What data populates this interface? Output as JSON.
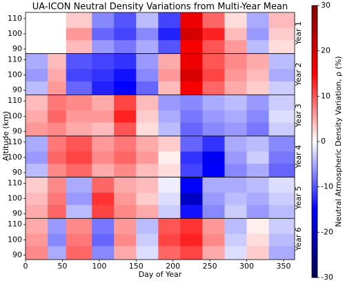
{
  "chart_data": {
    "type": "heatmap",
    "title": "UA-ICON Neutral Density Variations from Multi-Year Mean",
    "xlabel": "Day of Year",
    "ylabel": "Altitude (km)",
    "colorbar_label": "Neutral Atmospheric Density Variation, ρ (%)",
    "colormap": "seismic",
    "x_edges": [
      0,
      30,
      55,
      90,
      120,
      150,
      180,
      210,
      240,
      270,
      300,
      330,
      365
    ],
    "y_edges": [
      87,
      96,
      104,
      114
    ],
    "xlim": [
      0,
      365
    ],
    "xticks": [
      0,
      50,
      100,
      150,
      200,
      250,
      300,
      350
    ],
    "ylim": [
      87,
      114
    ],
    "yticks": [
      90,
      100,
      110
    ],
    "clim": [
      -30,
      30
    ],
    "cticks": [
      -30,
      -20,
      -10,
      0,
      10,
      20,
      30
    ],
    "panels": [
      {
        "label": "Year 1",
        "values": [
          [
            null,
            null,
            4,
            -6,
            -8,
            -5,
            -10,
            16,
            10,
            6,
            -4,
            2
          ],
          [
            null,
            null,
            6,
            -9,
            -11,
            -7,
            -13,
            20,
            13,
            4,
            -6,
            3
          ],
          [
            null,
            null,
            3,
            -7,
            -10,
            -4,
            -11,
            17,
            9,
            2,
            -5,
            4
          ]
        ]
      },
      {
        "label": "Year 2",
        "values": [
          [
            -4,
            6,
            -9,
            -13,
            -15,
            -9,
            4,
            16,
            9,
            5,
            3,
            -3
          ],
          [
            -6,
            5,
            -11,
            -12,
            -14,
            -7,
            6,
            20,
            11,
            6,
            4,
            -5
          ],
          [
            -5,
            4,
            -10,
            -11,
            -12,
            -6,
            5,
            17,
            10,
            7,
            5,
            -4
          ]
        ]
      },
      {
        "label": "Year 3",
        "values": [
          [
            6,
            7,
            5,
            4,
            10,
            2,
            -4,
            -9,
            -7,
            -6,
            -8,
            -3
          ],
          [
            5,
            9,
            6,
            6,
            13,
            3,
            -5,
            -8,
            -6,
            -5,
            -7,
            -2
          ],
          [
            4,
            8,
            7,
            5,
            11,
            4,
            -6,
            -7,
            -5,
            -4,
            -6,
            -3
          ]
        ]
      },
      {
        "label": "Year 4",
        "values": [
          [
            -4,
            7,
            9,
            5,
            7,
            4,
            2,
            -11,
            -15,
            -7,
            -5,
            -9
          ],
          [
            -6,
            9,
            11,
            7,
            9,
            6,
            1,
            -12,
            -16,
            -6,
            -3,
            -8
          ],
          [
            -5,
            8,
            10,
            6,
            8,
            5,
            3,
            -9,
            -12,
            -5,
            -4,
            -7
          ]
        ]
      },
      {
        "label": "Year 5",
        "values": [
          [
            5,
            9,
            -4,
            11,
            7,
            5,
            -3,
            -14,
            -7,
            -3,
            -6,
            -4
          ],
          [
            4,
            8,
            -6,
            12,
            6,
            3,
            -2,
            -20,
            -6,
            -4,
            -5,
            -3
          ],
          [
            3,
            7,
            -5,
            9,
            5,
            4,
            -1,
            -15,
            -5,
            -5,
            -4,
            -2
          ]
        ]
      },
      {
        "label": "Year 6",
        "values": [
          [
            7,
            -5,
            9,
            -7,
            5,
            -2,
            9,
            11,
            5,
            -2,
            3,
            -5
          ],
          [
            6,
            -7,
            8,
            -9,
            7,
            -3,
            11,
            13,
            7,
            -3,
            2,
            -4
          ],
          [
            5,
            -6,
            7,
            -8,
            6,
            -4,
            10,
            12,
            6,
            -4,
            1,
            -3
          ]
        ]
      }
    ]
  }
}
